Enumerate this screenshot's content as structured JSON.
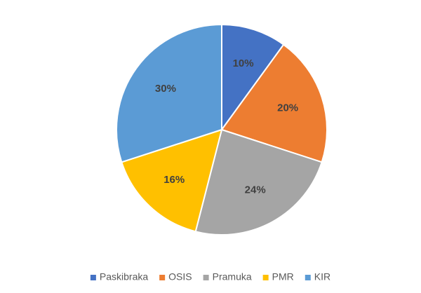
{
  "chart_data": {
    "type": "pie",
    "categories": [
      "Paskibraka",
      "OSIS",
      "Pramuka",
      "PMR",
      "KIR"
    ],
    "values": [
      10,
      20,
      24,
      16,
      30
    ],
    "value_labels": [
      "10%",
      "20%",
      "24%",
      "16%",
      "30%"
    ],
    "colors": [
      "#4472c4",
      "#ed7d31",
      "#a5a5a5",
      "#ffc000",
      "#5b9bd5"
    ],
    "legend": "bottom"
  }
}
